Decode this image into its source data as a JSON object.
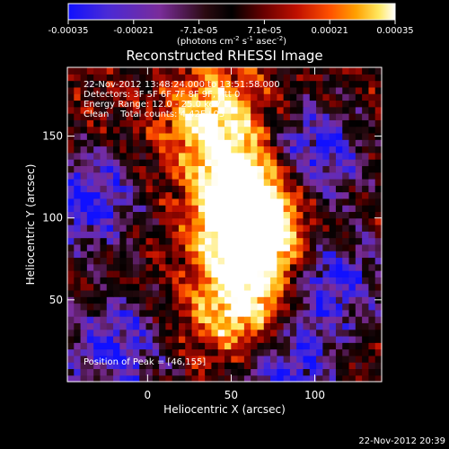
{
  "chart_data": {
    "type": "heatmap",
    "title": "Reconstructed RHESSI Image",
    "xlabel": "Heliocentric X (arcsec)",
    "ylabel": "Heliocentric Y (arcsec)",
    "xlim": [
      -48,
      140
    ],
    "ylim": [
      0,
      192
    ],
    "xticks": [
      0,
      50,
      100
    ],
    "yticks": [
      50,
      100,
      150
    ],
    "colorbar": {
      "range": [
        -0.00035,
        0.00035
      ],
      "tick_labels": [
        "-0.00035",
        "-0.00021",
        "-7.1e-05",
        "7.1e-05",
        "0.00021",
        "0.00035"
      ],
      "unit_label": "(photons cm",
      "unit_label_parts": [
        "(photons cm",
        "-2",
        " s",
        "-1",
        " asec",
        "-2",
        ")"
      ],
      "colormap": [
        "#1010ff",
        "#4a2ad6",
        "#7a2c9a",
        "#2a0a10",
        "#000000",
        "#6a0000",
        "#c01000",
        "#ff5000",
        "#ffa000",
        "#ffe860",
        "#ffffff"
      ]
    },
    "annotations": [
      "22-Nov-2012 13:48:24.000 to 13:51:58.000",
      "Detectors: 3F 5F 6F 7F 8F 9F, Att 0",
      "Energy Range: 12.0 - 25.0 keV",
      "Clean    Total counts: 4.42E+03"
    ],
    "peak_label": "Position of Peak = [46,155]",
    "peak": [
      46,
      155
    ],
    "timestamp": "22-Nov-2012 20:39",
    "grid": "off",
    "structure": {
      "bright_ridge": [
        [
          40,
          160
        ],
        [
          55,
          120
        ],
        [
          60,
          100
        ],
        [
          65,
          80
        ],
        [
          55,
          40
        ]
      ],
      "negative_regions": [
        [
          -35,
          110
        ],
        [
          100,
          140
        ],
        [
          110,
          60
        ],
        [
          -20,
          20
        ],
        [
          80,
          10
        ]
      ]
    }
  }
}
